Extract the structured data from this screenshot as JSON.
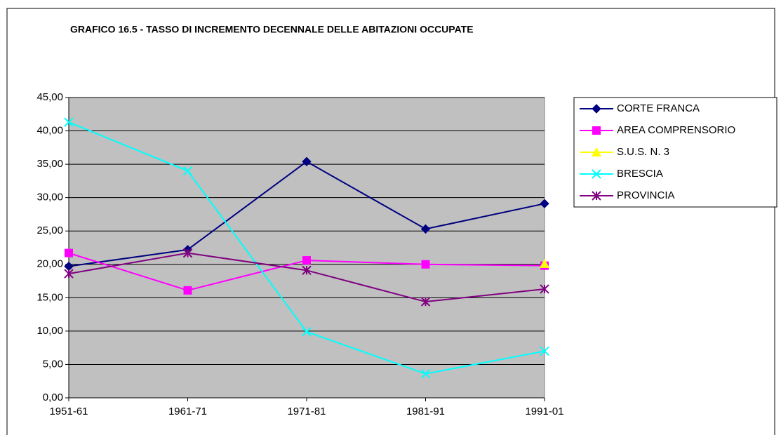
{
  "chart_data": {
    "type": "line",
    "title": "GRAFICO 16.5 - TASSO DI INCREMENTO DECENNALE DELLE ABITAZIONI OCCUPATE",
    "categories": [
      "1951-61",
      "1961-71",
      "1971-81",
      "1981-91",
      "1991-01"
    ],
    "series": [
      {
        "name": "CORTE FRANCA",
        "color": "#000080",
        "marker": "diamond",
        "values": [
          19.7,
          22.2,
          35.4,
          25.3,
          29.1
        ]
      },
      {
        "name": "AREA COMPRENSORIO",
        "color": "#ff00ff",
        "marker": "square",
        "values": [
          21.7,
          16.1,
          20.6,
          20.0,
          19.8
        ]
      },
      {
        "name": "S.U.S. N. 3",
        "color": "#ffff00",
        "marker": "triangle",
        "values": [
          null,
          null,
          null,
          null,
          20.1
        ]
      },
      {
        "name": "BRESCIA",
        "color": "#00ffff",
        "marker": "x",
        "values": [
          41.3,
          34.0,
          9.9,
          3.6,
          7.0
        ]
      },
      {
        "name": "PROVINCIA",
        "color": "#800080",
        "marker": "asterisk",
        "values": [
          18.6,
          21.7,
          19.1,
          14.4,
          16.3
        ]
      }
    ],
    "ylim": [
      0,
      45
    ],
    "yticks": [
      {
        "value": 0,
        "label": "0,00"
      },
      {
        "value": 5,
        "label": "5,00"
      },
      {
        "value": 10,
        "label": "10,00"
      },
      {
        "value": 15,
        "label": "15,00"
      },
      {
        "value": 20,
        "label": "20,00"
      },
      {
        "value": 25,
        "label": "25,00"
      },
      {
        "value": 30,
        "label": "30,00"
      },
      {
        "value": 35,
        "label": "35,00"
      },
      {
        "value": 40,
        "label": "40,00"
      },
      {
        "value": 45,
        "label": "45,00"
      }
    ],
    "grid": true,
    "legend": "right",
    "plot_background": "#c0c0c0"
  }
}
